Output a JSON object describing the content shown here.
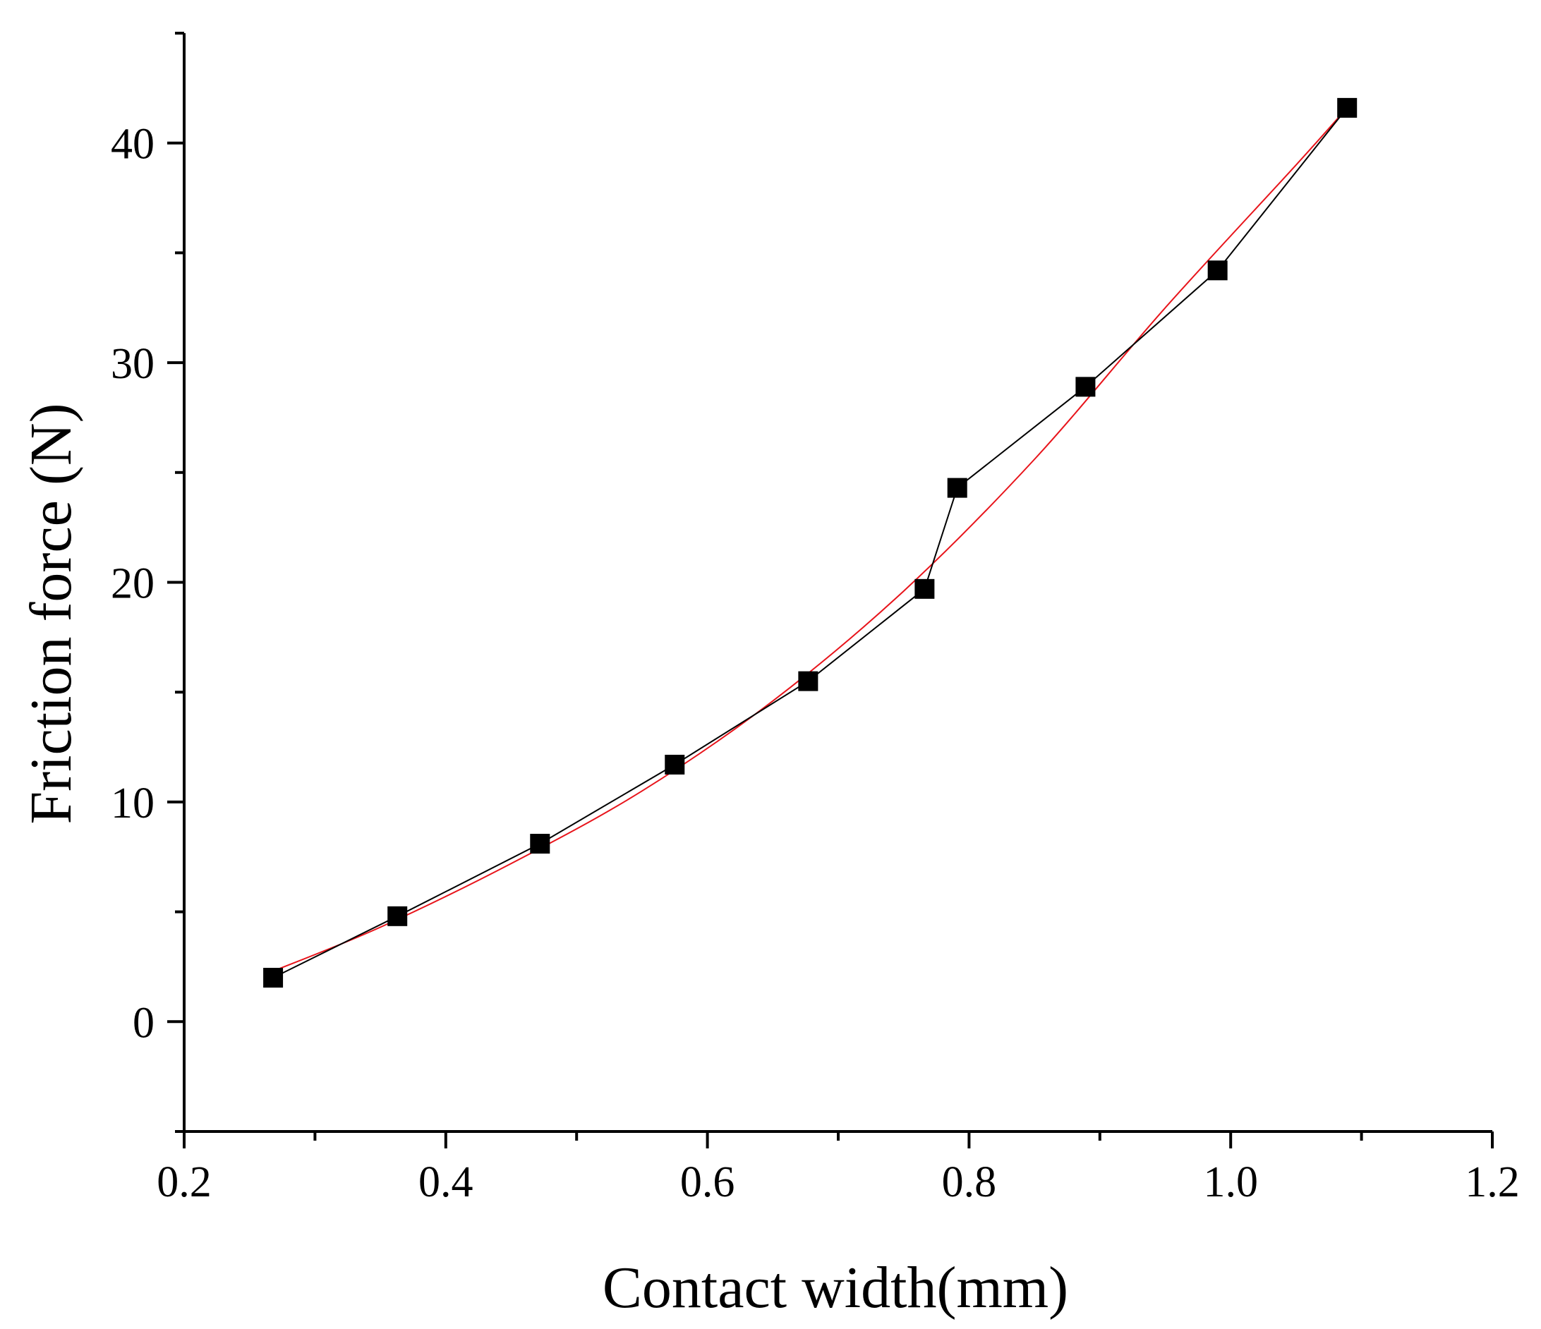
{
  "chart_data": {
    "type": "scatter",
    "title": "",
    "xlabel": "Contact width(mm)",
    "ylabel": "Friction force (N)",
    "xlim": [
      0.2,
      1.2
    ],
    "ylim": [
      -5,
      45
    ],
    "x_ticks": [
      0.2,
      0.4,
      0.6,
      0.8,
      1.0,
      1.2
    ],
    "x_tick_labels": [
      "0.2",
      "0.4",
      "0.6",
      "0.8",
      "1.0",
      "1.2"
    ],
    "y_ticks": [
      0,
      10,
      20,
      30,
      40
    ],
    "y_tick_labels": [
      "0",
      "10",
      "20",
      "30",
      "40"
    ],
    "grid": false,
    "legend": "none",
    "series": [
      {
        "style": "line-with-square-markers",
        "color": "#000000",
        "x": [
          0.268,
          0.363,
          0.472,
          0.575,
          0.677,
          0.766,
          0.791,
          0.889,
          0.99,
          1.089
        ],
        "y": [
          2.0,
          4.8,
          8.1,
          11.7,
          15.5,
          19.7,
          24.3,
          28.9,
          34.2,
          41.6
        ]
      },
      {
        "style": "fit-curve",
        "color": "#e8141b",
        "x": [
          0.268,
          0.35,
          0.45,
          0.55,
          0.65,
          0.75,
          0.85,
          0.95,
          1.05,
          1.089
        ],
        "y": [
          2.3,
          4.3,
          7.2,
          10.5,
          14.6,
          19.6,
          25.6,
          32.5,
          39.0,
          41.6
        ]
      }
    ]
  }
}
